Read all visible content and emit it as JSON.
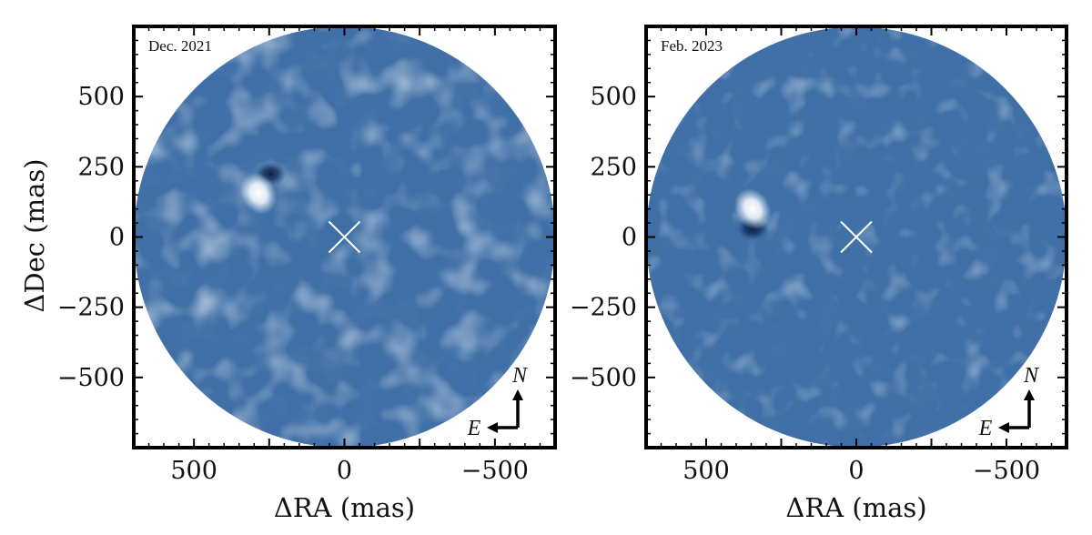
{
  "figure": {
    "ylabel": "ΔDec (mas)",
    "y_ticks": [
      "500",
      "250",
      "0",
      "−250",
      "−500"
    ],
    "y_tick_values": [
      500,
      250,
      0,
      -250,
      -500
    ],
    "x_ticks": [
      "500",
      "0",
      "−500"
    ],
    "x_tick_values": [
      500,
      0,
      -500
    ],
    "ra_range": [
      700,
      -700
    ],
    "dec_range": [
      -750,
      750
    ],
    "mask_radius_mas": 700,
    "star_marker": "×",
    "compass_north": "N",
    "compass_east": "E",
    "colors": {
      "background": "#3f6fa6",
      "light": "#dce9f3",
      "dark": "#10305c",
      "frame": "#000000",
      "marker": "#ffffff"
    }
  },
  "panels": [
    {
      "date": "Dec. 2021",
      "xlabel": "ΔRA (mas)",
      "source": {
        "ra": 285,
        "dec": 155,
        "type": "bright companion"
      },
      "dark_lobe": {
        "ra": 245,
        "dec": 225
      }
    },
    {
      "date": "Feb. 2023",
      "xlabel": "ΔRA (mas)",
      "source": {
        "ra": 345,
        "dec": 100,
        "type": "bright companion"
      },
      "dark_lobe": {
        "ra": 345,
        "dec": 30
      }
    }
  ]
}
